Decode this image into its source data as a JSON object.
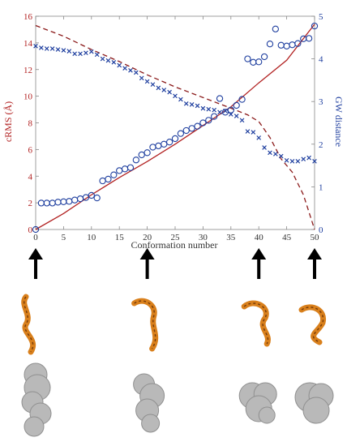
{
  "chart_data": {
    "type": "line",
    "xlabel": "Conformation number",
    "ylabel_left": "cRMS (Å)",
    "ylabel_right": "GW distance",
    "xlim": [
      0,
      50
    ],
    "ylim_left": [
      0,
      16
    ],
    "ylim_right": [
      0,
      5
    ],
    "x_ticks": [
      "0",
      "5",
      "10",
      "15",
      "20",
      "25",
      "30",
      "35",
      "40",
      "45",
      "50"
    ],
    "y_left_ticks": [
      "0",
      "2",
      "4",
      "6",
      "8",
      "10",
      "12",
      "14",
      "16"
    ],
    "y_right_ticks": [
      "0",
      "1",
      "2",
      "3",
      "4",
      "5"
    ],
    "grid": false,
    "colors": {
      "red": "#b22222",
      "darkred": "#8b1a1a",
      "blue": "#1f3f9f",
      "axis": "#888888"
    },
    "series": [
      {
        "axis": "left",
        "style": "solid",
        "color": "#b22222",
        "points": [
          [
            0,
            0
          ],
          [
            5,
            1.2
          ],
          [
            10,
            2.6
          ],
          [
            15,
            3.9
          ],
          [
            20,
            5.1
          ],
          [
            25,
            6.4
          ],
          [
            30,
            7.8
          ],
          [
            35,
            9.2
          ],
          [
            40,
            11.0
          ],
          [
            45,
            12.7
          ],
          [
            50,
            15.4
          ]
        ]
      },
      {
        "axis": "left",
        "style": "dashed",
        "color": "#8b1a1a",
        "points": [
          [
            0,
            15.3
          ],
          [
            5,
            14.5
          ],
          [
            10,
            13.5
          ],
          [
            15,
            12.6
          ],
          [
            20,
            11.6
          ],
          [
            25,
            10.7
          ],
          [
            30,
            9.9
          ],
          [
            35,
            9.1
          ],
          [
            38,
            8.6
          ],
          [
            40,
            8.1
          ],
          [
            42,
            6.9
          ],
          [
            44,
            5.3
          ],
          [
            46,
            4.3
          ],
          [
            48,
            2.6
          ],
          [
            50,
            0
          ]
        ]
      },
      {
        "axis": "right",
        "style": "circles",
        "color": "#1f3f9f",
        "points": [
          [
            0,
            0
          ],
          [
            1,
            0.62
          ],
          [
            2,
            0.62
          ],
          [
            3,
            0.62
          ],
          [
            4,
            0.64
          ],
          [
            5,
            0.65
          ],
          [
            6,
            0.66
          ],
          [
            7,
            0.69
          ],
          [
            8,
            0.72
          ],
          [
            9,
            0.75
          ],
          [
            10,
            0.8
          ],
          [
            11,
            0.74
          ],
          [
            12,
            1.14
          ],
          [
            13,
            1.18
          ],
          [
            14,
            1.28
          ],
          [
            15,
            1.38
          ],
          [
            16,
            1.42
          ],
          [
            17,
            1.45
          ],
          [
            18,
            1.63
          ],
          [
            19,
            1.75
          ],
          [
            20,
            1.8
          ],
          [
            21,
            1.93
          ],
          [
            22,
            1.96
          ],
          [
            23,
            2.0
          ],
          [
            24,
            2.05
          ],
          [
            25,
            2.13
          ],
          [
            26,
            2.25
          ],
          [
            27,
            2.32
          ],
          [
            28,
            2.37
          ],
          [
            29,
            2.42
          ],
          [
            30,
            2.5
          ],
          [
            31,
            2.56
          ],
          [
            32,
            2.65
          ],
          [
            33,
            3.07
          ],
          [
            34,
            2.75
          ],
          [
            35,
            2.8
          ],
          [
            36,
            2.91
          ],
          [
            37,
            3.05
          ],
          [
            38,
            4.0
          ],
          [
            39,
            3.92
          ],
          [
            40,
            3.93
          ],
          [
            41,
            4.05
          ],
          [
            42,
            4.35
          ],
          [
            43,
            4.7
          ],
          [
            44,
            4.32
          ],
          [
            45,
            4.3
          ],
          [
            46,
            4.33
          ],
          [
            47,
            4.36
          ],
          [
            48,
            4.47
          ],
          [
            49,
            4.48
          ],
          [
            50,
            4.77
          ]
        ]
      },
      {
        "axis": "right",
        "style": "crosses",
        "color": "#1f3f9f",
        "points": [
          [
            0,
            4.3
          ],
          [
            1,
            4.26
          ],
          [
            2,
            4.24
          ],
          [
            3,
            4.24
          ],
          [
            4,
            4.22
          ],
          [
            5,
            4.2
          ],
          [
            6,
            4.18
          ],
          [
            7,
            4.12
          ],
          [
            8,
            4.12
          ],
          [
            9,
            4.14
          ],
          [
            10,
            4.17
          ],
          [
            11,
            4.1
          ],
          [
            12,
            4.0
          ],
          [
            13,
            3.96
          ],
          [
            14,
            3.92
          ],
          [
            15,
            3.85
          ],
          [
            16,
            3.78
          ],
          [
            17,
            3.73
          ],
          [
            18,
            3.68
          ],
          [
            19,
            3.55
          ],
          [
            20,
            3.47
          ],
          [
            21,
            3.4
          ],
          [
            22,
            3.32
          ],
          [
            23,
            3.27
          ],
          [
            24,
            3.22
          ],
          [
            25,
            3.13
          ],
          [
            26,
            3.05
          ],
          [
            27,
            2.95
          ],
          [
            28,
            2.93
          ],
          [
            29,
            2.9
          ],
          [
            30,
            2.84
          ],
          [
            31,
            2.82
          ],
          [
            32,
            2.8
          ],
          [
            33,
            2.75
          ],
          [
            34,
            2.78
          ],
          [
            35,
            2.7
          ],
          [
            36,
            2.66
          ],
          [
            37,
            2.56
          ],
          [
            38,
            2.3
          ],
          [
            39,
            2.28
          ],
          [
            40,
            2.15
          ],
          [
            41,
            1.92
          ],
          [
            42,
            1.8
          ],
          [
            43,
            1.77
          ],
          [
            44,
            1.72
          ],
          [
            45,
            1.62
          ],
          [
            46,
            1.6
          ],
          [
            47,
            1.6
          ],
          [
            48,
            1.65
          ],
          [
            49,
            1.68
          ],
          [
            50,
            1.6
          ]
        ]
      }
    ]
  },
  "structures": [
    {
      "x": 0,
      "color": "#d9801c"
    },
    {
      "x": 20,
      "color": "#d9801c"
    },
    {
      "x": 40,
      "color": "#d9801c"
    },
    {
      "x": 50,
      "color": "#d9801c"
    }
  ]
}
